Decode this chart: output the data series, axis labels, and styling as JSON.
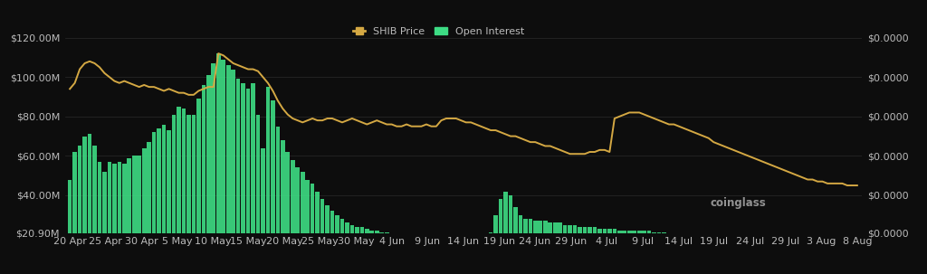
{
  "background_color": "#0d0d0d",
  "bar_color": "#3ddc84",
  "line_color": "#d4a843",
  "left_yticks": [
    "$20.90M",
    "$40.00M",
    "$60.00M",
    "$80.00M",
    "$100.00M",
    "$120.00M"
  ],
  "left_yvalues": [
    20.9,
    40,
    60,
    80,
    100,
    120
  ],
  "right_yticks": [
    "$0.0000",
    "$0.0000",
    "$0.0000",
    "$0.0000",
    "$0.0000",
    "$0.0000"
  ],
  "xtick_labels": [
    "20 Apr",
    "25 Apr",
    "30 Apr",
    "5 May",
    "10 May",
    "15 May",
    "20 May",
    "25 May",
    "30 May",
    "4 Jun",
    "9 Jun",
    "14 Jun",
    "19 Jun",
    "24 Jun",
    "29 Jun",
    "4 Jul",
    "9 Jul",
    "14 Jul",
    "19 Jul",
    "24 Jul",
    "29 Jul",
    "3 Aug",
    "8 Aug"
  ],
  "legend_items": [
    {
      "label": "SHIB Price",
      "color": "#d4a843",
      "type": "line"
    },
    {
      "label": "Open Interest",
      "color": "#3ddc84",
      "type": "bar"
    }
  ],
  "bar_data": [
    48,
    62,
    65,
    70,
    71,
    65,
    57,
    52,
    57,
    56,
    57,
    56,
    59,
    60,
    60,
    64,
    67,
    72,
    74,
    76,
    73,
    81,
    85,
    84,
    81,
    81,
    89,
    96,
    101,
    107,
    112,
    109,
    106,
    104,
    99,
    97,
    94,
    97,
    81,
    64,
    95,
    88,
    75,
    68,
    62,
    58,
    54,
    52,
    48,
    46,
    42,
    38,
    35,
    32,
    30,
    28,
    26,
    25,
    24,
    24,
    23,
    22,
    22,
    21,
    21,
    20,
    20,
    20,
    19,
    19,
    19,
    18,
    18,
    18,
    18,
    18,
    18,
    17,
    17,
    17,
    17,
    16,
    16,
    16,
    16,
    21,
    30,
    38,
    42,
    40,
    34,
    30,
    28,
    28,
    27,
    27,
    27,
    26,
    26,
    26,
    25,
    25,
    25,
    24,
    24,
    24,
    24,
    23,
    23,
    23,
    23,
    22,
    22,
    22,
    22,
    22,
    22,
    22,
    21,
    21,
    21,
    20,
    20,
    20,
    19,
    19,
    18,
    18,
    17,
    17,
    16,
    16,
    16,
    15,
    15,
    14,
    14,
    13,
    12,
    12,
    10,
    9,
    8,
    7,
    7,
    7,
    6,
    6,
    5,
    5,
    5,
    5,
    5,
    4,
    4,
    4,
    4,
    4,
    4,
    4
  ],
  "line_data": [
    94,
    97,
    104,
    107,
    108,
    107,
    105,
    102,
    100,
    98,
    97,
    98,
    97,
    96,
    95,
    96,
    95,
    95,
    94,
    93,
    94,
    93,
    92,
    92,
    91,
    91,
    93,
    94,
    95,
    95,
    112,
    111,
    109,
    107,
    106,
    105,
    104,
    104,
    103,
    100,
    97,
    93,
    88,
    84,
    81,
    79,
    78,
    77,
    78,
    79,
    78,
    78,
    79,
    79,
    78,
    77,
    78,
    79,
    78,
    77,
    76,
    77,
    78,
    77,
    76,
    76,
    75,
    75,
    76,
    75,
    75,
    75,
    76,
    75,
    75,
    78,
    79,
    79,
    79,
    78,
    77,
    77,
    76,
    75,
    74,
    73,
    73,
    72,
    71,
    70,
    70,
    69,
    68,
    67,
    67,
    66,
    65,
    65,
    64,
    63,
    62,
    61,
    61,
    61,
    61,
    62,
    62,
    63,
    63,
    62,
    79,
    80,
    81,
    82,
    82,
    82,
    81,
    80,
    79,
    78,
    77,
    76,
    76,
    75,
    74,
    73,
    72,
    71,
    70,
    69,
    67,
    66,
    65,
    64,
    63,
    62,
    61,
    60,
    59,
    58,
    57,
    56,
    55,
    54,
    53,
    52,
    51,
    50,
    49,
    48,
    48,
    47,
    47,
    46,
    46,
    46,
    46,
    45,
    45,
    45
  ],
  "n_bars": 160,
  "ylim_left": [
    20.9,
    128
  ],
  "text_color": "#bbbbbb",
  "grid_color": "#2a2a2a",
  "font_size": 8,
  "legend_fontsize": 8,
  "watermark": "coinglass"
}
